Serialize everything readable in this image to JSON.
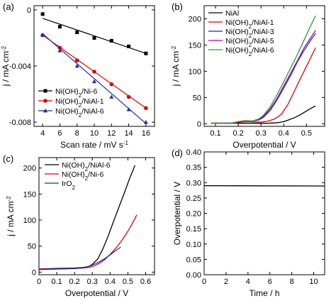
{
  "chart_data": [
    {
      "panel": "(a)",
      "type": "scatter",
      "xlabel": "Scan rate / mV s",
      "xlabel_sup": "-1",
      "ylabel": "j / mA cm",
      "ylabel_sup": "-2",
      "xlim": [
        3,
        17
      ],
      "ylim": [
        -0.0083,
        0.0003
      ],
      "xticks": [
        4,
        6,
        8,
        10,
        12,
        14,
        16
      ],
      "yticks": [
        -0.008,
        -0.004,
        0
      ],
      "ytick_labels": [
        "-0.008",
        "-0.004",
        "0"
      ],
      "grid": false,
      "legend_position": "bottom-left",
      "x": [
        4,
        6,
        8,
        10,
        12,
        14,
        16
      ],
      "series": [
        {
          "name": "Ni(OH)",
          "name_sub": "2",
          "name_tail": "/Ni-6",
          "color": "#000000",
          "marker": "square",
          "values": [
            -0.0003,
            -0.0012,
            -0.0016,
            -0.002,
            -0.0022,
            -0.0026,
            -0.0031
          ],
          "fit": [
            -0.0006,
            -0.0031
          ]
        },
        {
          "name": "Ni(OH)",
          "name_sub": "2",
          "name_tail": "/NiAl-1",
          "color": "#e00000",
          "marker": "circle",
          "values": [
            -0.0018,
            -0.0027,
            -0.0036,
            -0.0044,
            -0.0053,
            -0.0062,
            -0.007
          ],
          "fit": [
            -0.0018,
            -0.007
          ]
        },
        {
          "name": "Ni(OH)",
          "name_sub": "2",
          "name_tail": "/NiAl-6",
          "color": "#1f2fa8",
          "marker": "triangle",
          "values": [
            -0.0018,
            -0.0029,
            -0.004,
            -0.0051,
            -0.0062,
            -0.0071,
            -0.008
          ],
          "fit": [
            -0.0017,
            -0.0081
          ]
        }
      ]
    },
    {
      "panel": "(b)",
      "type": "line",
      "xlabel": "Overpotential / V",
      "ylabel": "j / mA cm",
      "ylabel_sup": "-2",
      "xlim": [
        0.05,
        0.58
      ],
      "ylim": [
        -5,
        225
      ],
      "xticks": [
        0.1,
        0.2,
        0.3,
        0.4,
        0.5
      ],
      "yticks": [
        0,
        50,
        100,
        150,
        200
      ],
      "grid": false,
      "legend_position": "top-left",
      "series": [
        {
          "name": "NiAl",
          "name_sub": "",
          "name_tail": "",
          "color": "#000000",
          "x": [
            0.08,
            0.3,
            0.33,
            0.36,
            0.38,
            0.4,
            0.42,
            0.45,
            0.48,
            0.51,
            0.54
          ],
          "y": [
            1,
            1,
            1,
            1.5,
            2.5,
            4,
            7,
            12,
            19,
            27,
            34
          ]
        },
        {
          "name": "Ni(OH)",
          "name_sub": "2",
          "name_tail": "/NiAl-1",
          "color": "#e00000",
          "x": [
            0.08,
            0.18,
            0.21,
            0.24,
            0.27,
            0.3,
            0.33,
            0.36,
            0.39,
            0.42,
            0.45,
            0.48,
            0.51,
            0.54
          ],
          "y": [
            1,
            1,
            3,
            4,
            3.5,
            3,
            5,
            9,
            18,
            38,
            65,
            92,
            118,
            145
          ]
        },
        {
          "name": "Ni(OH)",
          "name_sub": "2",
          "name_tail": "/NiAl-3",
          "color": "#1f2fa8",
          "x": [
            0.08,
            0.17,
            0.2,
            0.23,
            0.26,
            0.29,
            0.31,
            0.34,
            0.37,
            0.4,
            0.43,
            0.46,
            0.49,
            0.52,
            0.54
          ],
          "y": [
            1,
            1,
            4,
            6,
            5,
            7,
            12,
            25,
            45,
            68,
            92,
            118,
            140,
            160,
            172
          ]
        },
        {
          "name": "Ni(OH)",
          "name_sub": "2",
          "name_tail": "/NiAl-5",
          "color": "#b000b0",
          "x": [
            0.08,
            0.17,
            0.2,
            0.23,
            0.26,
            0.29,
            0.31,
            0.34,
            0.37,
            0.4,
            0.43,
            0.46,
            0.49,
            0.52,
            0.54
          ],
          "y": [
            1,
            1,
            4,
            6,
            5,
            8,
            14,
            28,
            48,
            72,
            96,
            120,
            145,
            165,
            178
          ]
        },
        {
          "name": "Ni(OH)",
          "name_sub": "2",
          "name_tail": "/NiAl-6",
          "color": "#2e9a2e",
          "x": [
            0.08,
            0.17,
            0.2,
            0.23,
            0.26,
            0.29,
            0.31,
            0.34,
            0.37,
            0.4,
            0.43,
            0.46,
            0.49,
            0.52,
            0.54
          ],
          "y": [
            1,
            1,
            4,
            6,
            5,
            9,
            16,
            32,
            55,
            80,
            106,
            132,
            160,
            188,
            206
          ]
        }
      ]
    },
    {
      "panel": "(c)",
      "type": "line",
      "xlabel": "Overpotential / V",
      "ylabel": "j / mA cm",
      "ylabel_sup": "-2",
      "xlim": [
        0.0,
        0.65
      ],
      "ylim": [
        -5,
        220
      ],
      "xticks": [
        0.0,
        0.1,
        0.2,
        0.3,
        0.4,
        0.5,
        0.6
      ],
      "yticks": [
        0,
        50,
        100,
        150,
        200
      ],
      "grid": false,
      "legend_position": "top-left",
      "series": [
        {
          "name": "Ni(OH)",
          "name_sub": "2",
          "name_tail": "/NiAl-6",
          "color": "#000000",
          "x": [
            0.0,
            0.1,
            0.2,
            0.25,
            0.28,
            0.3,
            0.33,
            0.36,
            0.39,
            0.42,
            0.45,
            0.48,
            0.51,
            0.54
          ],
          "y": [
            6,
            7,
            8,
            9,
            11,
            15,
            25,
            45,
            70,
            98,
            125,
            152,
            180,
            205
          ]
        },
        {
          "name": "Ni(OH)",
          "name_sub": "2",
          "name_tail": "/Ni-6",
          "color": "#e00000",
          "x": [
            0.0,
            0.1,
            0.2,
            0.25,
            0.28,
            0.31,
            0.34,
            0.37,
            0.4,
            0.43,
            0.46,
            0.49,
            0.52,
            0.55
          ],
          "y": [
            6,
            6,
            7,
            8,
            9,
            12,
            17,
            24,
            34,
            45,
            58,
            73,
            90,
            110
          ]
        },
        {
          "name": "IrO",
          "name_sub": "2",
          "name_tail": "",
          "color": "#1f2fa8",
          "x": [
            0.0,
            0.1,
            0.2,
            0.25,
            0.28,
            0.31,
            0.34,
            0.37,
            0.4,
            0.43,
            0.46
          ],
          "y": [
            5,
            6,
            7,
            8,
            11,
            15,
            20,
            26,
            33,
            41,
            48
          ]
        }
      ]
    },
    {
      "panel": "(d)",
      "type": "line",
      "xlabel": "Time / h",
      "ylabel": "Overpotential / V",
      "ylabel_sup": "",
      "xlim": [
        0,
        11
      ],
      "ylim": [
        0.0,
        0.4
      ],
      "xticks": [
        0,
        2,
        4,
        6,
        8,
        10
      ],
      "yticks": [
        0.0,
        0.05,
        0.1,
        0.15,
        0.2,
        0.25,
        0.3,
        0.35,
        0.4
      ],
      "ytick_labels": [
        "0.00",
        "0.05",
        "0.10",
        "0.15",
        "0.20",
        "0.25",
        "0.30",
        "0.35",
        "0.40"
      ],
      "grid": false,
      "series": [
        {
          "name": "",
          "color": "#000000",
          "x": [
            0,
            11
          ],
          "y": [
            0.29,
            0.289
          ]
        }
      ]
    }
  ]
}
